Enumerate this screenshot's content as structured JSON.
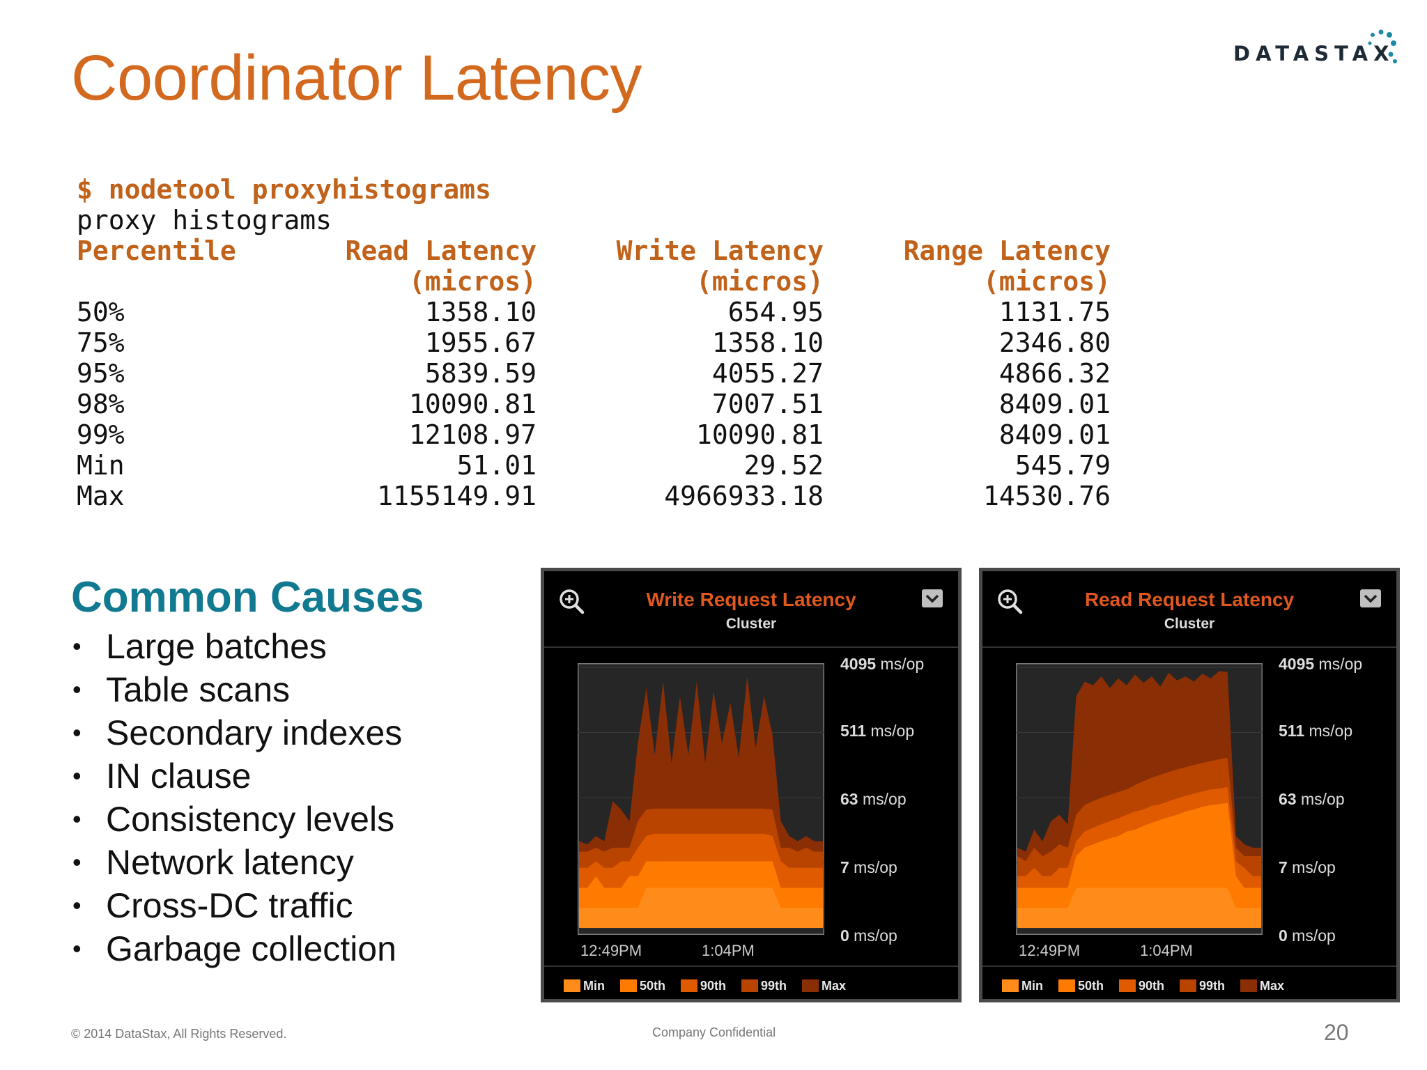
{
  "slide": {
    "title": "Coordinator Latency",
    "logo_text": "DATASTAX",
    "terminal": {
      "command": "$ nodetool proxyhistograms",
      "subtitle": "proxy histograms",
      "headers": [
        "Percentile",
        "Read Latency",
        "Write Latency",
        "Range Latency"
      ],
      "units": [
        "",
        "(micros)",
        "(micros)",
        "(micros)"
      ],
      "rows": [
        [
          "50%",
          "1358.10",
          "654.95",
          "1131.75"
        ],
        [
          "75%",
          "1955.67",
          "1358.10",
          "2346.80"
        ],
        [
          "95%",
          "5839.59",
          "4055.27",
          "4866.32"
        ],
        [
          "98%",
          "10090.81",
          "7007.51",
          "8409.01"
        ],
        [
          "99%",
          "12108.97",
          "10090.81",
          "8409.01"
        ],
        [
          "Min",
          "51.01",
          "29.52",
          "545.79"
        ],
        [
          "Max",
          "1155149.91",
          "4966933.18",
          "14530.76"
        ]
      ]
    },
    "causes": {
      "title": "Common Causes",
      "items": [
        "Large batches",
        "Table scans",
        "Secondary indexes",
        "IN clause",
        "Consistency levels",
        "Network latency",
        "Cross-DC traffic",
        "Garbage collection"
      ]
    },
    "footer": {
      "copyright": "© 2014 DataStax, All Rights Reserved.",
      "confidential": "Company Confidential",
      "page": "20"
    }
  },
  "panels": [
    {
      "title": "Write Request Latency",
      "subtitle": "Cluster",
      "y_labels": [
        {
          "value": "4095",
          "unit": "ms/op"
        },
        {
          "value": "511",
          "unit": "ms/op"
        },
        {
          "value": "63",
          "unit": "ms/op"
        },
        {
          "value": "7",
          "unit": "ms/op"
        },
        {
          "value": "0",
          "unit": "ms/op"
        }
      ],
      "x_labels": [
        "12:49PM",
        "1:04PM"
      ],
      "legend": [
        "Min",
        "50th",
        "90th",
        "99th",
        "Max"
      ]
    },
    {
      "title": "Read Request Latency",
      "subtitle": "Cluster",
      "y_labels": [
        {
          "value": "4095",
          "unit": "ms/op"
        },
        {
          "value": "511",
          "unit": "ms/op"
        },
        {
          "value": "63",
          "unit": "ms/op"
        },
        {
          "value": "7",
          "unit": "ms/op"
        },
        {
          "value": "0",
          "unit": "ms/op"
        }
      ],
      "x_labels": [
        "12:49PM",
        "1:04PM"
      ],
      "legend": [
        "Min",
        "50th",
        "90th",
        "99th",
        "Max"
      ]
    }
  ],
  "colors": {
    "title": "#d2691e",
    "accent": "#117a91",
    "min": "#ff8c1a",
    "p50": "#ff7a00",
    "p90": "#e05a00",
    "p99": "#b84400",
    "max": "#8a2e05"
  },
  "chart_data": [
    {
      "type": "area",
      "title": "Write Request Latency",
      "subtitle": "Cluster",
      "y_scale": "log",
      "y_ticks": [
        "0 ms/op",
        "7 ms/op",
        "63 ms/op",
        "511 ms/op",
        "4095 ms/op"
      ],
      "x_ticks": [
        "12:49PM",
        "1:04PM"
      ],
      "x": [
        0,
        1,
        2,
        3,
        4,
        5,
        6,
        7,
        8,
        9,
        10,
        11,
        12,
        13,
        14,
        15,
        16,
        17,
        18,
        19,
        20,
        21,
        22,
        23,
        24,
        25,
        26,
        27,
        28,
        29
      ],
      "series": [
        {
          "name": "Min",
          "values": [
            1,
            1,
            1,
            1,
            1,
            1,
            1,
            1,
            2,
            2,
            2,
            2,
            2,
            2,
            2,
            2,
            2,
            2,
            2,
            2,
            2,
            2,
            2,
            2,
            1,
            1,
            1,
            1,
            1,
            1
          ]
        },
        {
          "name": "50th",
          "values": [
            2,
            2,
            3,
            2,
            2,
            2,
            3,
            3,
            5,
            5,
            5,
            5,
            5,
            5,
            5,
            5,
            5,
            5,
            5,
            5,
            5,
            5,
            5,
            5,
            2,
            2,
            2,
            2,
            2,
            2
          ]
        },
        {
          "name": "90th",
          "values": [
            4,
            4,
            5,
            4,
            4,
            5,
            5,
            8,
            12,
            13,
            13,
            13,
            13,
            13,
            13,
            13,
            13,
            13,
            13,
            13,
            13,
            13,
            13,
            12,
            5,
            4,
            4,
            4,
            4,
            4
          ]
        },
        {
          "name": "99th",
          "values": [
            7,
            7,
            8,
            7,
            8,
            8,
            8,
            20,
            30,
            31,
            31,
            31,
            31,
            31,
            31,
            31,
            31,
            31,
            31,
            31,
            31,
            31,
            31,
            30,
            8,
            8,
            7,
            8,
            7,
            7
          ]
        },
        {
          "name": "Max",
          "values": [
            10,
            9,
            12,
            10,
            40,
            30,
            20,
            300,
            2000,
            200,
            2500,
            150,
            1500,
            200,
            2500,
            150,
            1800,
            300,
            1200,
            180,
            3000,
            250,
            1500,
            400,
            20,
            12,
            10,
            12,
            10,
            10
          ]
        }
      ]
    },
    {
      "type": "area",
      "title": "Read Request Latency",
      "subtitle": "Cluster",
      "y_scale": "log",
      "y_ticks": [
        "0 ms/op",
        "7 ms/op",
        "63 ms/op",
        "511 ms/op",
        "4095 ms/op"
      ],
      "x_ticks": [
        "12:49PM",
        "1:04PM"
      ],
      "x": [
        0,
        1,
        2,
        3,
        4,
        5,
        6,
        7,
        8,
        9,
        10,
        11,
        12,
        13,
        14,
        15,
        16,
        17,
        18,
        19,
        20,
        21,
        22,
        23,
        24,
        25,
        26,
        27,
        28,
        29
      ],
      "series": [
        {
          "name": "Min",
          "values": [
            1,
            1,
            1,
            1,
            1,
            1,
            1,
            2,
            2,
            2,
            2,
            2,
            2,
            2,
            2,
            2,
            2,
            2,
            2,
            2,
            2,
            2,
            2,
            2,
            2,
            2,
            1,
            1,
            1,
            1
          ]
        },
        {
          "name": "50th",
          "values": [
            2,
            2,
            2,
            2,
            2,
            2,
            2,
            6,
            8,
            9,
            10,
            11,
            12,
            14,
            15,
            17,
            19,
            21,
            23,
            25,
            28,
            30,
            33,
            35,
            36,
            38,
            3,
            2,
            2,
            2
          ]
        },
        {
          "name": "90th",
          "values": [
            3,
            3,
            4,
            3,
            3,
            4,
            4,
            10,
            14,
            16,
            18,
            20,
            22,
            25,
            28,
            30,
            34,
            36,
            40,
            44,
            48,
            52,
            56,
            60,
            62,
            65,
            5,
            4,
            3,
            3
          ]
        },
        {
          "name": "99th",
          "values": [
            6,
            5,
            8,
            6,
            7,
            9,
            8,
            25,
            35,
            40,
            45,
            50,
            55,
            60,
            70,
            80,
            90,
            100,
            110,
            120,
            130,
            140,
            150,
            160,
            170,
            180,
            8,
            6,
            6,
            6
          ]
        },
        {
          "name": "Max",
          "values": [
            8,
            7,
            15,
            10,
            20,
            25,
            18,
            1500,
            2500,
            2200,
            3000,
            2000,
            2800,
            2200,
            3200,
            2400,
            3000,
            2100,
            3400,
            2600,
            3000,
            2500,
            3300,
            2800,
            3600,
            3500,
            12,
            9,
            8,
            8
          ]
        }
      ]
    }
  ]
}
